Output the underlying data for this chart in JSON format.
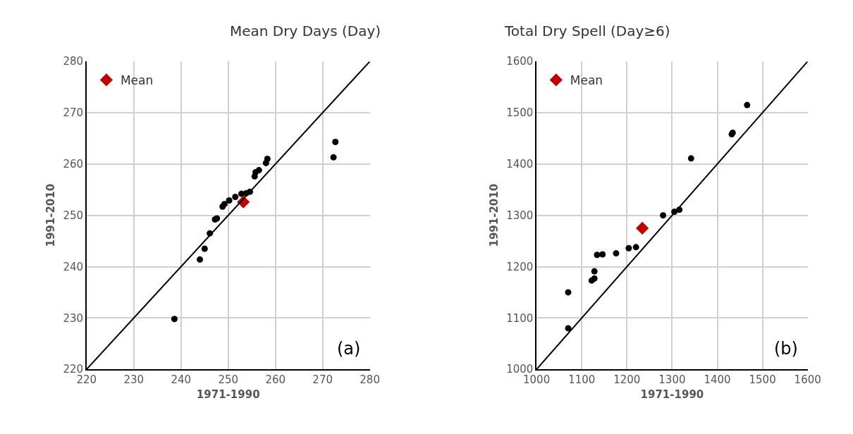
{
  "chart_data": [
    {
      "type": "scatter",
      "title": "Mean Dry Days (Day)",
      "xlabel": "1971-1990",
      "ylabel": "1991-2010",
      "xlim": [
        220,
        280
      ],
      "ylim": [
        220,
        280
      ],
      "xticks": [
        220,
        230,
        240,
        250,
        260,
        270,
        280
      ],
      "yticks": [
        220,
        230,
        240,
        250,
        260,
        270,
        280
      ],
      "grid": true,
      "legend": "top left",
      "annotations": [
        "(a)"
      ],
      "series": [
        {
          "color": "#000000",
          "marker": "circle",
          "x": [
            238.6,
            244,
            245,
            246.1,
            247.2,
            247.6,
            248.8,
            249.2,
            250.2,
            251.5,
            252.8,
            253.8,
            254.6,
            255.6,
            255.8,
            256.5,
            258,
            258.3,
            272.3,
            272.7
          ],
          "values": [
            229.8,
            241.4,
            243.5,
            246.5,
            249.2,
            249.4,
            251.7,
            252.2,
            252.9,
            253.6,
            254.2,
            254.3,
            254.6,
            257.6,
            258.4,
            258.8,
            260.2,
            261,
            261.3,
            264.3
          ]
        },
        {
          "name": "Mean",
          "color": "#c00000",
          "marker": "diamond",
          "x": [
            253.2
          ],
          "values": [
            252.6
          ]
        },
        {
          "type": "line",
          "color": "#000000",
          "marker": "none",
          "x": [
            220,
            280
          ],
          "values": [
            220,
            280
          ]
        }
      ]
    },
    {
      "type": "scatter",
      "title": "Total Dry Spell (Day≥6)",
      "xlabel": "1971-1990",
      "ylabel": "1991-2010",
      "xlim": [
        1000,
        1600
      ],
      "ylim": [
        1000,
        1600
      ],
      "xticks": [
        1000,
        1100,
        1200,
        1300,
        1400,
        1500,
        1600
      ],
      "yticks": [
        1000,
        1100,
        1200,
        1300,
        1400,
        1500,
        1600
      ],
      "grid": true,
      "legend": "top left",
      "annotations": [
        "(b)"
      ],
      "series": [
        {
          "color": "#000000",
          "marker": "circle",
          "x": [
            1070,
            1070,
            1122,
            1128,
            1128,
            1134,
            1146,
            1176,
            1204,
            1220,
            1280,
            1305,
            1316,
            1342,
            1432,
            1434,
            1466
          ],
          "values": [
            1080,
            1150,
            1173,
            1177,
            1191,
            1223,
            1224,
            1226,
            1236,
            1238,
            1300,
            1307,
            1311,
            1411,
            1458,
            1461,
            1515
          ]
        },
        {
          "name": "Mean",
          "color": "#c00000",
          "marker": "diamond",
          "x": [
            1234
          ],
          "values": [
            1275
          ]
        },
        {
          "type": "line",
          "color": "#000000",
          "marker": "none",
          "x": [
            1000,
            1600
          ],
          "values": [
            1000,
            1600
          ]
        }
      ]
    }
  ]
}
